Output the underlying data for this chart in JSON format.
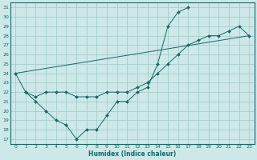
{
  "xlabel": "Humidex (Indice chaleur)",
  "bg_color": "#cce8e8",
  "grid_color": "#9ec8c8",
  "line_color": "#1a6666",
  "ylim": [
    16.5,
    31.5
  ],
  "xlim": [
    -0.5,
    23.5
  ],
  "yticks": [
    17,
    18,
    19,
    20,
    21,
    22,
    23,
    24,
    25,
    26,
    27,
    28,
    29,
    30,
    31
  ],
  "xticks": [
    0,
    1,
    2,
    3,
    4,
    5,
    6,
    7,
    8,
    9,
    10,
    11,
    12,
    13,
    14,
    15,
    16,
    17,
    18,
    19,
    20,
    21,
    22,
    23
  ],
  "line1_x": [
    0,
    1,
    2,
    3,
    4,
    5,
    6,
    7,
    8,
    9,
    10,
    11,
    12,
    13,
    14,
    15,
    16,
    17,
    18,
    19,
    20,
    21,
    22,
    23
  ],
  "line1_y": [
    24,
    22,
    21.5,
    22,
    22,
    22,
    21.5,
    21.5,
    21.5,
    22,
    22,
    22,
    22.5,
    23,
    24,
    25,
    26,
    27,
    27.5,
    28,
    28,
    28.5,
    29,
    28
  ],
  "line2_x": [
    1,
    2,
    3,
    4,
    5,
    6,
    7,
    8,
    9,
    10,
    11,
    12,
    13,
    14,
    15,
    16,
    17
  ],
  "line2_y": [
    22,
    21,
    20,
    19,
    18.5,
    17,
    18,
    18,
    19.5,
    21,
    21,
    22,
    22.5,
    25,
    29,
    30.5,
    31
  ],
  "line3_x": [
    0,
    23
  ],
  "line3_y": [
    24,
    28
  ]
}
